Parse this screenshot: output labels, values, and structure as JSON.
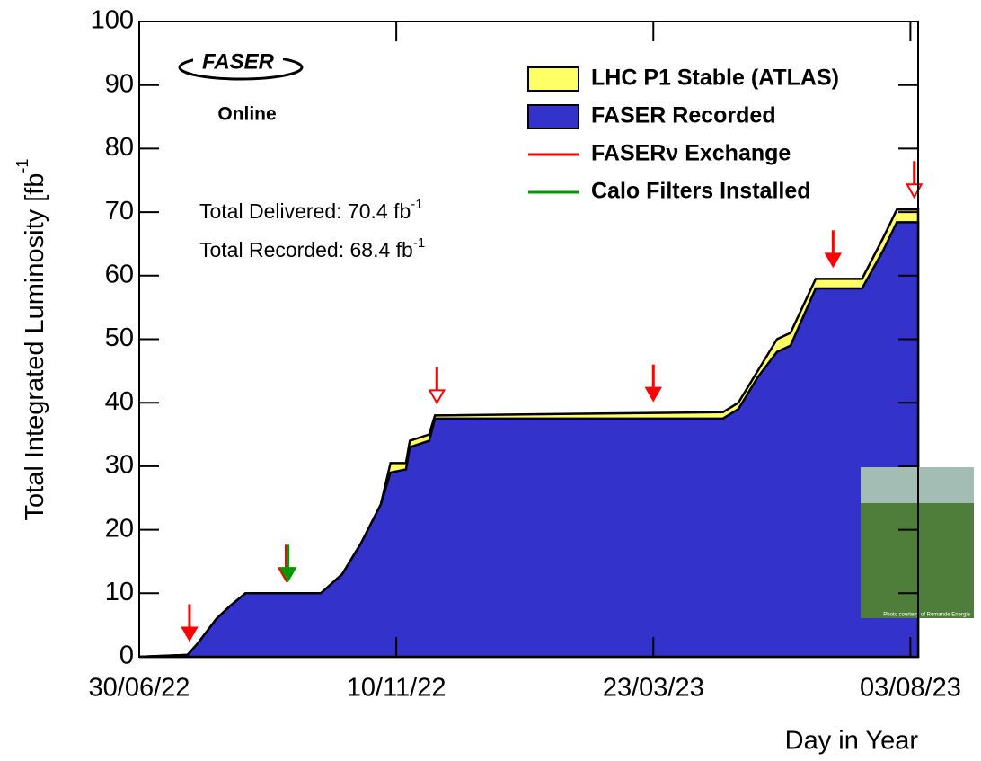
{
  "chart_data": {
    "type": "area",
    "logo": {
      "title": "FASER",
      "subtitle": "Online"
    },
    "y_label": {
      "text": "Total Integrated Luminosity [fb",
      "sup": "-1"
    },
    "x_label": "Day in Year",
    "annotations": [
      {
        "text": "Total Delivered: 70.4 fb",
        "sup": "-1"
      },
      {
        "text": "Total Recorded: 68.4 fb",
        "sup": "-1"
      }
    ],
    "photo_credit": "Photo courtesy of Romande Energie",
    "xlim": [
      "2022-06-30",
      "2023-08-07"
    ],
    "xticks": [
      {
        "value": "2022-06-30",
        "label": "30/06/22"
      },
      {
        "value": "2022-11-10",
        "label": "10/11/22"
      },
      {
        "value": "2023-03-23",
        "label": "23/03/23"
      },
      {
        "value": "2023-08-03",
        "label": "03/08/23"
      }
    ],
    "ylim": [
      0,
      100
    ],
    "yticks": [
      0,
      10,
      20,
      30,
      40,
      50,
      60,
      70,
      80,
      90,
      100
    ],
    "x": [
      "2022-06-30",
      "2022-07-25",
      "2022-07-30",
      "2022-08-09",
      "2022-08-16",
      "2022-08-24",
      "2022-10-02",
      "2022-10-13",
      "2022-10-23",
      "2022-11-02",
      "2022-11-07",
      "2022-11-15",
      "2022-11-17",
      "2022-11-27",
      "2022-11-30",
      "2023-04-28",
      "2023-05-06",
      "2023-05-16",
      "2023-05-26",
      "2023-06-02",
      "2023-06-15",
      "2023-07-09",
      "2023-07-20",
      "2023-07-27",
      "2023-08-07"
    ],
    "series": [
      {
        "name": "LHC P1 Stable (ATLAS)",
        "color": "#ffff66",
        "values": [
          0,
          0.3,
          2,
          6,
          8,
          10,
          10,
          13,
          18,
          24,
          30.5,
          30.5,
          34,
          35,
          38,
          38.5,
          40,
          45,
          50,
          51,
          59.5,
          59.5,
          66,
          70.4,
          70.4
        ]
      },
      {
        "name": "FASER Recorded",
        "color": "#3333cc",
        "values": [
          0,
          0.3,
          2,
          6,
          8,
          10,
          10,
          13,
          18,
          24,
          29,
          29.5,
          33,
          34,
          37.5,
          37.5,
          39,
          44,
          48,
          49,
          58,
          58,
          64,
          68.4,
          68.4
        ]
      }
    ],
    "events": [
      {
        "name": "FASERν Exchange",
        "color": "#ff0000",
        "x": [
          "2022-07-26",
          "2022-09-14",
          "2022-12-01",
          "2023-03-23",
          "2023-06-24",
          "2023-08-05"
        ],
        "hollow": [
          false,
          false,
          true,
          false,
          false,
          true
        ]
      },
      {
        "name": "Calo Filters Installed",
        "color": "#009900",
        "x": [
          "2022-09-15"
        ],
        "hollow": [
          false
        ]
      }
    ]
  }
}
